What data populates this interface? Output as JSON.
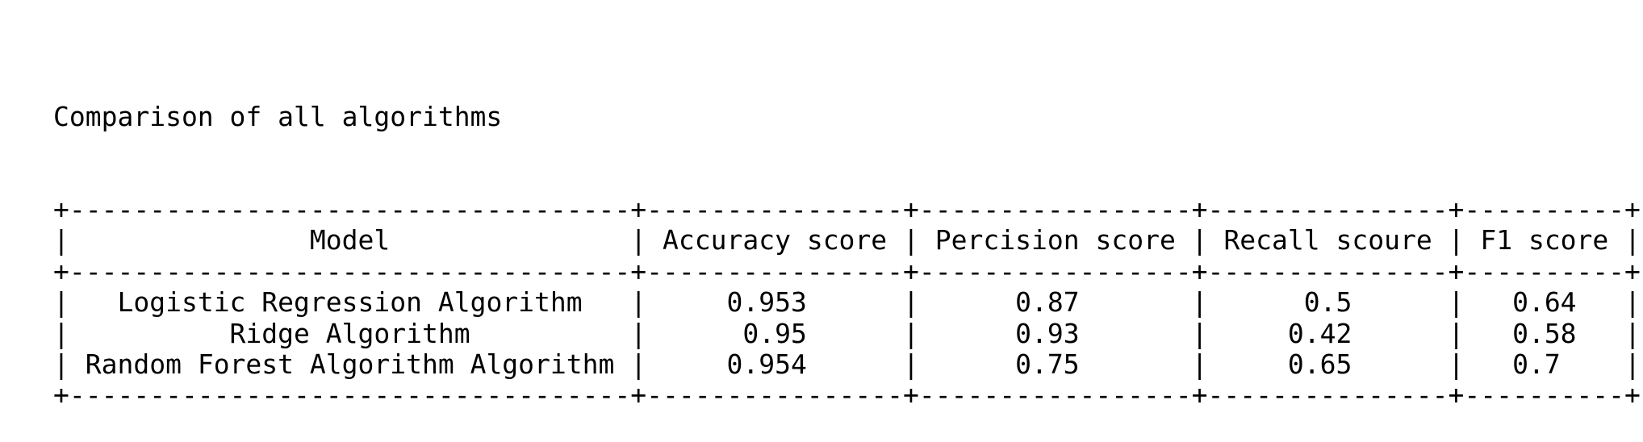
{
  "title": "Comparison of all algorithms",
  "table": {
    "columns": [
      "Model",
      "Accuracy score",
      "Percision score",
      "Recall scoure",
      "F1 score"
    ],
    "rows": [
      {
        "model": "Logistic Regression Algorithm",
        "accuracy": "0.953",
        "precision": "0.87",
        "recall": "0.5",
        "f1": "0.64"
      },
      {
        "model": "Ridge Algorithm",
        "accuracy": "0.95",
        "precision": "0.93",
        "recall": "0.42",
        "f1": "0.58"
      },
      {
        "model": "Random Forest Algorithm Algorithm",
        "accuracy": "0.954",
        "precision": "0.75",
        "recall": "0.65",
        "f1": "0.7"
      }
    ]
  }
}
